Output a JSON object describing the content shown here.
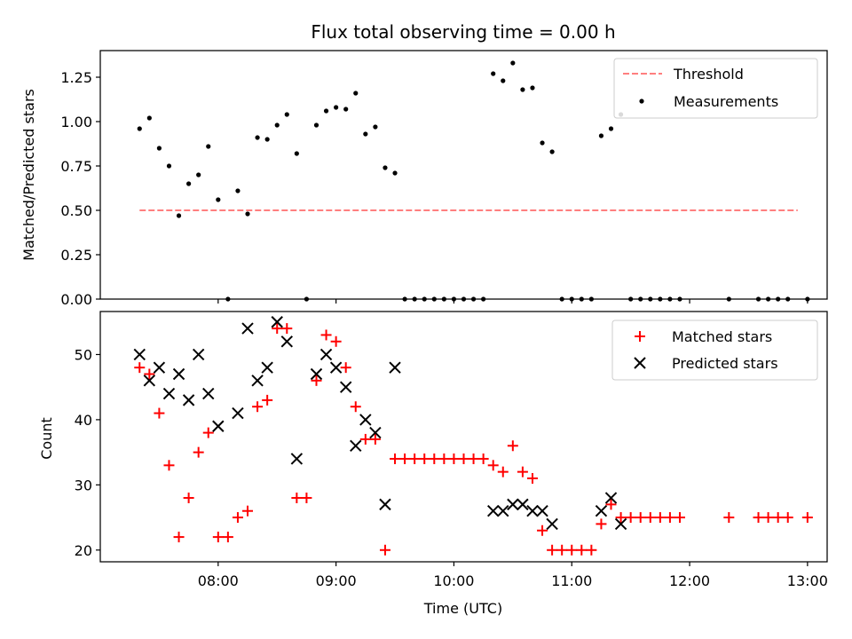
{
  "chart_data": [
    {
      "type": "scatter",
      "title": "Flux total observing time = 0.00 h",
      "xlabel": "",
      "ylabel": "Matched/Predicted stars",
      "ylim": [
        0,
        1.4
      ],
      "xlim": [
        "07:00",
        "13:10"
      ],
      "yticks": [
        0.0,
        0.25,
        0.5,
        0.75,
        1.0,
        1.25
      ],
      "ytick_labels": [
        "0.00",
        "0.25",
        "0.50",
        "0.75",
        "1.00",
        "1.25"
      ],
      "xtick_labels_shown": false,
      "grid": false,
      "legend": "top-right",
      "series": [
        {
          "name": "Threshold",
          "style": "dashed-line",
          "color": "#ff7f7f",
          "x": [
            "07:20",
            "12:55"
          ],
          "y": [
            0.5,
            0.5
          ]
        },
        {
          "name": "Measurements",
          "style": "dot",
          "color": "#000000",
          "points": [
            [
              "07:20",
              0.96
            ],
            [
              "07:25",
              1.02
            ],
            [
              "07:30",
              0.85
            ],
            [
              "07:35",
              0.75
            ],
            [
              "07:40",
              0.47
            ],
            [
              "07:45",
              0.65
            ],
            [
              "07:50",
              0.7
            ],
            [
              "07:55",
              0.86
            ],
            [
              "08:00",
              0.56
            ],
            [
              "08:05",
              0.0
            ],
            [
              "08:10",
              0.61
            ],
            [
              "08:15",
              0.48
            ],
            [
              "08:20",
              0.91
            ],
            [
              "08:25",
              0.9
            ],
            [
              "08:30",
              0.98
            ],
            [
              "08:35",
              1.04
            ],
            [
              "08:40",
              0.82
            ],
            [
              "08:45",
              0.0
            ],
            [
              "08:50",
              0.98
            ],
            [
              "08:55",
              1.06
            ],
            [
              "09:00",
              1.08
            ],
            [
              "09:05",
              1.07
            ],
            [
              "09:10",
              1.16
            ],
            [
              "09:15",
              0.93
            ],
            [
              "09:20",
              0.97
            ],
            [
              "09:25",
              0.74
            ],
            [
              "09:30",
              0.71
            ],
            [
              "09:35",
              0.0
            ],
            [
              "09:40",
              0.0
            ],
            [
              "09:45",
              0.0
            ],
            [
              "09:50",
              0.0
            ],
            [
              "09:55",
              0.0
            ],
            [
              "10:00",
              0.0
            ],
            [
              "10:05",
              0.0
            ],
            [
              "10:10",
              0.0
            ],
            [
              "10:15",
              0.0
            ],
            [
              "10:20",
              1.27
            ],
            [
              "10:25",
              1.23
            ],
            [
              "10:30",
              1.33
            ],
            [
              "10:35",
              1.18
            ],
            [
              "10:40",
              1.19
            ],
            [
              "10:45",
              0.88
            ],
            [
              "10:50",
              0.83
            ],
            [
              "10:55",
              0.0
            ],
            [
              "11:00",
              0.0
            ],
            [
              "11:05",
              0.0
            ],
            [
              "11:10",
              0.0
            ],
            [
              "11:15",
              0.92
            ],
            [
              "11:20",
              0.96
            ],
            [
              "11:25",
              1.04
            ],
            [
              "11:30",
              0.0
            ],
            [
              "11:35",
              0.0
            ],
            [
              "11:40",
              0.0
            ],
            [
              "11:45",
              0.0
            ],
            [
              "11:50",
              0.0
            ],
            [
              "11:55",
              0.0
            ],
            [
              "12:20",
              0.0
            ],
            [
              "12:35",
              0.0
            ],
            [
              "12:40",
              0.0
            ],
            [
              "12:45",
              0.0
            ],
            [
              "12:50",
              0.0
            ],
            [
              "13:00",
              0.0
            ]
          ]
        }
      ]
    },
    {
      "type": "scatter",
      "title": "",
      "xlabel": "Time (UTC)",
      "ylabel": "Count",
      "ylim": [
        18.2,
        56.6
      ],
      "xlim": [
        "07:00",
        "13:10"
      ],
      "yticks": [
        20,
        30,
        40,
        50
      ],
      "ytick_labels": [
        "20",
        "30",
        "40",
        "50"
      ],
      "xticks": [
        "08:00",
        "09:00",
        "10:00",
        "11:00",
        "12:00",
        "13:00"
      ],
      "grid": false,
      "legend": "top-right",
      "series": [
        {
          "name": "Matched stars",
          "marker": "+",
          "color": "#ff0000",
          "points": [
            [
              "07:20",
              48
            ],
            [
              "07:25",
              47
            ],
            [
              "07:30",
              41
            ],
            [
              "07:35",
              33
            ],
            [
              "07:40",
              22
            ],
            [
              "07:45",
              28
            ],
            [
              "07:50",
              35
            ],
            [
              "07:55",
              38
            ],
            [
              "08:00",
              22
            ],
            [
              "08:05",
              22
            ],
            [
              "08:10",
              25
            ],
            [
              "08:15",
              26
            ],
            [
              "08:20",
              42
            ],
            [
              "08:25",
              43
            ],
            [
              "08:30",
              54
            ],
            [
              "08:35",
              54
            ],
            [
              "08:40",
              28
            ],
            [
              "08:45",
              28
            ],
            [
              "08:50",
              46
            ],
            [
              "08:55",
              53
            ],
            [
              "09:00",
              52
            ],
            [
              "09:05",
              48
            ],
            [
              "09:10",
              42
            ],
            [
              "09:15",
              37
            ],
            [
              "09:20",
              37
            ],
            [
              "09:25",
              20
            ],
            [
              "09:30",
              34
            ],
            [
              "09:35",
              34
            ],
            [
              "09:40",
              34
            ],
            [
              "09:45",
              34
            ],
            [
              "09:50",
              34
            ],
            [
              "09:55",
              34
            ],
            [
              "10:00",
              34
            ],
            [
              "10:05",
              34
            ],
            [
              "10:10",
              34
            ],
            [
              "10:15",
              34
            ],
            [
              "10:20",
              33
            ],
            [
              "10:25",
              32
            ],
            [
              "10:30",
              36
            ],
            [
              "10:35",
              32
            ],
            [
              "10:40",
              31
            ],
            [
              "10:45",
              23
            ],
            [
              "10:50",
              20
            ],
            [
              "10:55",
              20
            ],
            [
              "11:00",
              20
            ],
            [
              "11:05",
              20
            ],
            [
              "11:10",
              20
            ],
            [
              "11:15",
              24
            ],
            [
              "11:20",
              27
            ],
            [
              "11:25",
              25
            ],
            [
              "11:30",
              25
            ],
            [
              "11:35",
              25
            ],
            [
              "11:40",
              25
            ],
            [
              "11:45",
              25
            ],
            [
              "11:50",
              25
            ],
            [
              "11:55",
              25
            ],
            [
              "12:20",
              25
            ],
            [
              "12:35",
              25
            ],
            [
              "12:40",
              25
            ],
            [
              "12:45",
              25
            ],
            [
              "12:50",
              25
            ],
            [
              "13:00",
              25
            ]
          ]
        },
        {
          "name": "Predicted stars",
          "marker": "x",
          "color": "#000000",
          "points": [
            [
              "07:20",
              50
            ],
            [
              "07:25",
              46
            ],
            [
              "07:30",
              48
            ],
            [
              "07:35",
              44
            ],
            [
              "07:40",
              47
            ],
            [
              "07:45",
              43
            ],
            [
              "07:50",
              50
            ],
            [
              "07:55",
              44
            ],
            [
              "08:00",
              39
            ],
            [
              "08:10",
              41
            ],
            [
              "08:15",
              54
            ],
            [
              "08:20",
              46
            ],
            [
              "08:25",
              48
            ],
            [
              "08:30",
              55
            ],
            [
              "08:35",
              52
            ],
            [
              "08:40",
              34
            ],
            [
              "08:50",
              47
            ],
            [
              "08:55",
              50
            ],
            [
              "09:00",
              48
            ],
            [
              "09:05",
              45
            ],
            [
              "09:10",
              36
            ],
            [
              "09:15",
              40
            ],
            [
              "09:20",
              38
            ],
            [
              "09:25",
              27
            ],
            [
              "09:30",
              48
            ],
            [
              "10:20",
              26
            ],
            [
              "10:25",
              26
            ],
            [
              "10:30",
              27
            ],
            [
              "10:35",
              27
            ],
            [
              "10:40",
              26
            ],
            [
              "10:45",
              26
            ],
            [
              "10:50",
              24
            ],
            [
              "11:15",
              26
            ],
            [
              "11:20",
              28
            ],
            [
              "11:25",
              24
            ]
          ]
        }
      ]
    }
  ]
}
